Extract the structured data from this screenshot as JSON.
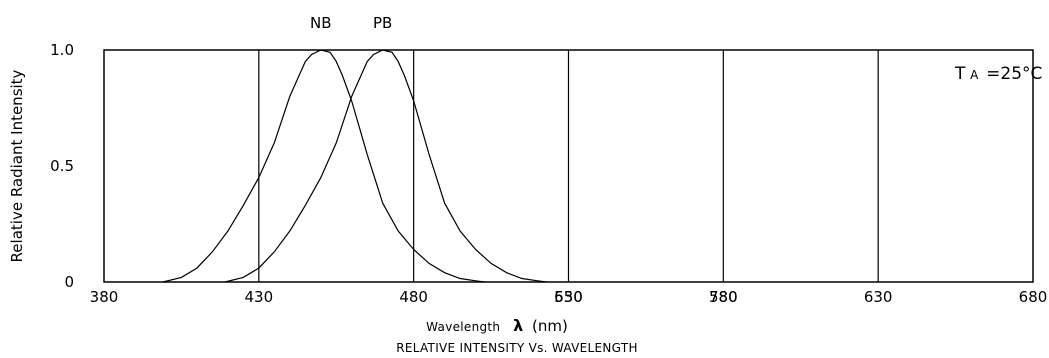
{
  "chart_data": {
    "type": "line",
    "subtitle": "RELATIVE INTENSITY Vs. WAVELENGTH",
    "xlabel": "Wavelength",
    "xlabel_symbol": "λ",
    "xlabel_unit": "(nm)",
    "ylabel": "Relative Radiant Intensity",
    "annotation": {
      "text_main": "T",
      "text_sub": "A",
      "text_rest": "=25°C"
    },
    "ylim": [
      0,
      1.0
    ],
    "y_ticks": [
      "1.0",
      "0.5",
      "0"
    ],
    "y_tick_values": [
      1.0,
      0.5,
      0
    ],
    "x_ticks": [
      "380",
      "430",
      "480",
      "530",
      "580",
      "630",
      "680"
    ],
    "x_ticks_overprint": [
      "650",
      "780"
    ],
    "vertical_lines_at_ticks": [
      "430",
      "480",
      "530",
      "580",
      "630"
    ],
    "series": [
      {
        "name": "NB",
        "x": [
          399,
          405,
          410,
          415,
          420,
          425,
          430,
          435,
          440,
          443,
          445,
          447,
          450,
          453,
          455,
          457,
          460,
          465,
          470,
          475,
          480,
          485,
          490,
          495,
          500,
          503
        ],
        "values": [
          0,
          0.02,
          0.06,
          0.13,
          0.22,
          0.33,
          0.45,
          0.6,
          0.8,
          0.89,
          0.95,
          0.98,
          1.0,
          0.99,
          0.95,
          0.89,
          0.78,
          0.55,
          0.34,
          0.22,
          0.14,
          0.08,
          0.04,
          0.015,
          0.005,
          0
        ]
      },
      {
        "name": "PB",
        "x": [
          419,
          425,
          430,
          435,
          440,
          445,
          450,
          455,
          460,
          463,
          465,
          467,
          470,
          473,
          475,
          477,
          480,
          485,
          490,
          495,
          500,
          505,
          510,
          515,
          520,
          523
        ],
        "values": [
          0,
          0.02,
          0.06,
          0.13,
          0.22,
          0.33,
          0.45,
          0.6,
          0.8,
          0.89,
          0.95,
          0.98,
          1.0,
          0.99,
          0.95,
          0.89,
          0.78,
          0.55,
          0.34,
          0.22,
          0.14,
          0.08,
          0.04,
          0.015,
          0.005,
          0
        ]
      }
    ]
  }
}
